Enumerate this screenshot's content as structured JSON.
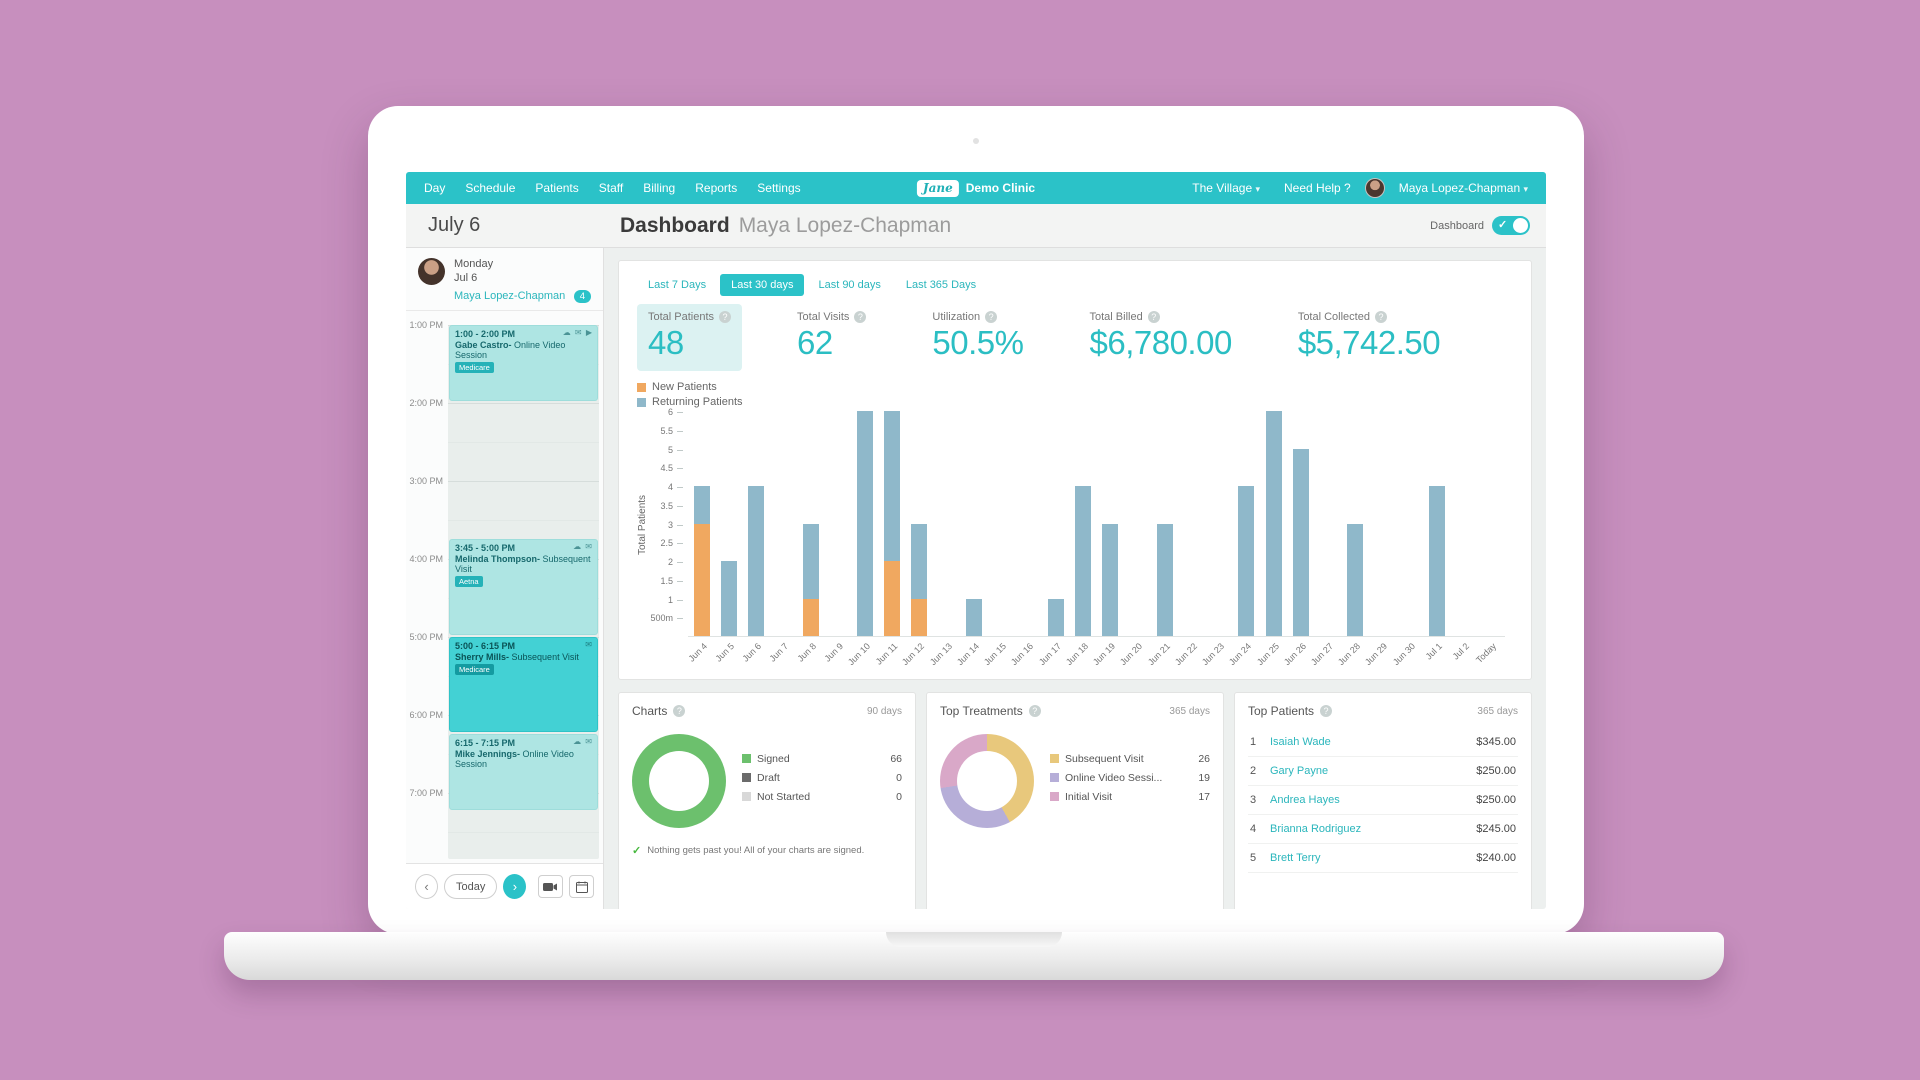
{
  "nav": {
    "items": [
      "Day",
      "Schedule",
      "Patients",
      "Staff",
      "Billing",
      "Reports",
      "Settings"
    ],
    "logo_text": "Jane",
    "clinic_name": "Demo Clinic",
    "location_menu": "The Village",
    "help_label": "Need Help ?",
    "user_name": "Maya Lopez-Chapman"
  },
  "header": {
    "date": "July 6",
    "title": "Dashboard",
    "subtitle": "Maya Lopez-Chapman",
    "toggle_label": "Dashboard"
  },
  "sidebar": {
    "day_name": "Monday",
    "day_date": "Jul 6",
    "practitioner": "Maya Lopez-Chapman",
    "badge_count": "4",
    "times": [
      "1:00 PM",
      "2:00 PM",
      "3:00 PM",
      "4:00 PM",
      "5:00 PM",
      "6:00 PM",
      "7:00 PM"
    ],
    "appointments": [
      {
        "time": "1:00 - 2:00 PM",
        "name": "Gabe Castro-",
        "type": "Online Video Session",
        "insurance": "Medicare",
        "start": 13,
        "end": 14,
        "selected": false,
        "icons": [
          "cloud",
          "mail",
          "video"
        ]
      },
      {
        "time": "3:45 - 5:00 PM",
        "name": "Melinda Thompson-",
        "type": "Subsequent Visit",
        "insurance": "Aetna",
        "start": 15.75,
        "end": 17,
        "selected": false,
        "icons": [
          "cloud",
          "mail"
        ]
      },
      {
        "time": "5:00 - 6:15 PM",
        "name": "Sherry Mills-",
        "type": "Subsequent Visit",
        "insurance": "Medicare",
        "start": 17,
        "end": 18.25,
        "selected": true,
        "icons": [
          "mail"
        ]
      },
      {
        "time": "6:15 - 7:15 PM",
        "name": "Mike Jennings-",
        "type": "Online Video Session",
        "insurance": "",
        "start": 18.25,
        "end": 19.25,
        "selected": false,
        "icons": [
          "cloud",
          "mail"
        ]
      }
    ],
    "footer": {
      "prev": "‹",
      "today": "Today",
      "next": "›"
    }
  },
  "dashboard": {
    "range_tabs": [
      {
        "label": "Last 7 Days",
        "active": false
      },
      {
        "label": "Last 30 days",
        "active": true
      },
      {
        "label": "Last 90 days",
        "active": false
      },
      {
        "label": "Last 365 Days",
        "active": false
      }
    ],
    "stats": [
      {
        "label": "Total Patients",
        "value": "48",
        "highlighted": true
      },
      {
        "label": "Total Visits",
        "value": "62",
        "highlighted": false
      },
      {
        "label": "Utilization",
        "value": "50.5%",
        "highlighted": false
      },
      {
        "label": "Total Billed",
        "value": "$6,780.00",
        "highlighted": false
      },
      {
        "label": "Total Collected",
        "value": "$5,742.50",
        "highlighted": false
      }
    ]
  },
  "chart_data": [
    {
      "type": "bar",
      "stacked": true,
      "title": "New vs Returning Patients per day",
      "xlabel": "",
      "ylabel": "Total Patients",
      "ylim": [
        0,
        6
      ],
      "ytick_labels": [
        "6",
        "5.5",
        "5",
        "4.5",
        "4",
        "3.5",
        "3",
        "2.5",
        "2",
        "1.5",
        "1",
        "500m"
      ],
      "legend_position": "top-left",
      "grid": false,
      "categories": [
        "Jun 4",
        "Jun 5",
        "Jun 6",
        "Jun 7",
        "Jun 8",
        "Jun 9",
        "Jun 10",
        "Jun 11",
        "Jun 12",
        "Jun 13",
        "Jun 14",
        "Jun 15",
        "Jun 16",
        "Jun 17",
        "Jun 18",
        "Jun 19",
        "Jun 20",
        "Jun 21",
        "Jun 22",
        "Jun 23",
        "Jun 24",
        "Jun 25",
        "Jun 26",
        "Jun 27",
        "Jun 28",
        "Jun 29",
        "Jun 30",
        "Jul 1",
        "Jul 2",
        "Today"
      ],
      "series": [
        {
          "name": "New Patients",
          "color": "#f0a860",
          "values": [
            3,
            0,
            0,
            0,
            1,
            0,
            0,
            2,
            1,
            0,
            0,
            0,
            0,
            0,
            0,
            0,
            0,
            0,
            0,
            0,
            0,
            0,
            0,
            0,
            0,
            0,
            0,
            0,
            0,
            0
          ]
        },
        {
          "name": "Returning Patients",
          "color": "#8fb8ca",
          "values": [
            1,
            2,
            4,
            0,
            2,
            0,
            6,
            4,
            2,
            0,
            1,
            0,
            0,
            1,
            4,
            3,
            0,
            3,
            0,
            0,
            4,
            6,
            5,
            0,
            3,
            0,
            0,
            4,
            0,
            0
          ]
        }
      ]
    },
    {
      "type": "pie",
      "title": "Charts",
      "period": "90 days",
      "slices": [
        {
          "label": "Signed",
          "value": 66,
          "color": "#6cc06d"
        },
        {
          "label": "Draft",
          "value": 0,
          "color": "#6b6b6b"
        },
        {
          "label": "Not Started",
          "value": 0,
          "color": "#d8d8d8"
        }
      ]
    },
    {
      "type": "pie",
      "title": "Top Treatments",
      "period": "365 days",
      "slices": [
        {
          "label": "Subsequent Visit",
          "value": 26,
          "color": "#e8c87c"
        },
        {
          "label": "Online Video Sessi...",
          "value": 19,
          "color": "#b6aed8"
        },
        {
          "label": "Initial Visit",
          "value": 17,
          "color": "#d9a8c8"
        }
      ]
    },
    {
      "type": "table",
      "title": "Top Patients",
      "period": "365 days",
      "rows": [
        {
          "rank": "1",
          "name": "Isaiah Wade",
          "amount": "$345.00"
        },
        {
          "rank": "2",
          "name": "Gary Payne",
          "amount": "$250.00"
        },
        {
          "rank": "3",
          "name": "Andrea Hayes",
          "amount": "$250.00"
        },
        {
          "rank": "4",
          "name": "Brianna Rodriguez",
          "amount": "$245.00"
        },
        {
          "rank": "5",
          "name": "Brett Terry",
          "amount": "$240.00"
        }
      ]
    }
  ],
  "cards": {
    "charts": {
      "title": "Charts",
      "period": "90 days",
      "note": "Nothing gets past you! All of your charts are signed."
    },
    "treatments": {
      "title": "Top Treatments",
      "period": "365 days"
    },
    "patients": {
      "title": "Top Patients",
      "period": "365 days"
    }
  },
  "colors": {
    "accent_teal": "#2bc2c8",
    "desktop_pink": "#c78fbe",
    "new_patients": "#f0a860",
    "returning_patients": "#8fb8ca"
  }
}
